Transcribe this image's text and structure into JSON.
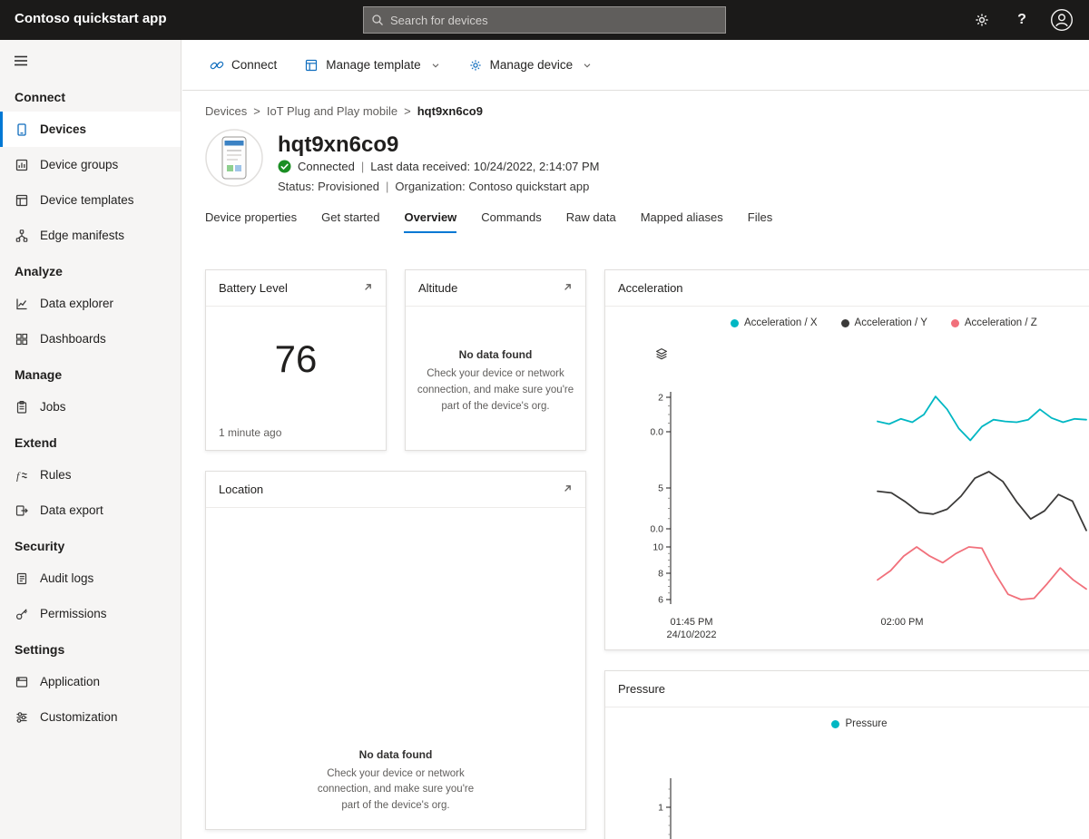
{
  "topbar": {
    "app_title": "Contoso quickstart app",
    "search_placeholder": "Search for devices"
  },
  "sidebar": {
    "sections": [
      {
        "header": "Connect",
        "items": [
          {
            "label": "Devices",
            "selected": true
          },
          {
            "label": "Device groups"
          },
          {
            "label": "Device templates"
          },
          {
            "label": "Edge manifests"
          }
        ]
      },
      {
        "header": "Analyze",
        "items": [
          {
            "label": "Data explorer"
          },
          {
            "label": "Dashboards"
          }
        ]
      },
      {
        "header": "Manage",
        "items": [
          {
            "label": "Jobs"
          }
        ]
      },
      {
        "header": "Extend",
        "items": [
          {
            "label": "Rules"
          },
          {
            "label": "Data export"
          }
        ]
      },
      {
        "header": "Security",
        "items": [
          {
            "label": "Audit logs"
          },
          {
            "label": "Permissions"
          }
        ]
      },
      {
        "header": "Settings",
        "items": [
          {
            "label": "Application"
          },
          {
            "label": "Customization"
          }
        ]
      }
    ]
  },
  "toolbar": {
    "connect_label": "Connect",
    "manage_template_label": "Manage template",
    "manage_device_label": "Manage device"
  },
  "breadcrumb": {
    "items": [
      "Devices",
      "IoT Plug and Play mobile",
      "hqt9xn6co9"
    ],
    "separator": ">"
  },
  "device": {
    "name": "hqt9xn6co9",
    "connection_status": "Connected",
    "last_data": "Last data received: 10/24/2022, 2:14:07 PM",
    "status": "Status: Provisioned",
    "organization": "Organization: Contoso quickstart app",
    "separator": "|"
  },
  "tabs": [
    {
      "label": "Device properties"
    },
    {
      "label": "Get started"
    },
    {
      "label": "Overview",
      "active": true
    },
    {
      "label": "Commands"
    },
    {
      "label": "Raw data"
    },
    {
      "label": "Mapped aliases"
    },
    {
      "label": "Files"
    }
  ],
  "tiles": {
    "battery": {
      "title": "Battery Level",
      "value": "76",
      "caption": "1 minute ago"
    },
    "altitude": {
      "title": "Altitude"
    },
    "acceleration": {
      "title": "Acceleration"
    },
    "location": {
      "title": "Location"
    },
    "pressure": {
      "title": "Pressure"
    }
  },
  "no_data": {
    "title": "No data found",
    "message": "Check your device or network connection, and make sure you're part of the device's org."
  },
  "chart_data": [
    {
      "tile": "Acceleration",
      "type": "line",
      "legend_position": "top",
      "x_ticks": [
        {
          "line1": "01:45 PM",
          "line2": "24/10/2022"
        },
        {
          "line1": "02:00 PM"
        }
      ],
      "series": [
        {
          "name": "Acceleration / X",
          "color": "#00B7C3",
          "axis_ticks": [
            "2",
            "0.0"
          ],
          "values": [
            0.6,
            0.45,
            0.75,
            0.55,
            1.0,
            2.05,
            1.3,
            0.2,
            -0.5,
            0.3,
            0.7,
            0.6,
            0.55,
            0.7,
            1.3,
            0.8,
            0.55,
            0.75,
            0.7
          ]
        },
        {
          "name": "Acceleration / Y",
          "color": "#3B3A39",
          "axis_ticks": [
            "5",
            "0.0"
          ],
          "values": [
            4.6,
            4.4,
            3.3,
            2.0,
            1.8,
            2.4,
            4.0,
            6.2,
            7.0,
            5.8,
            3.3,
            1.2,
            2.2,
            4.2,
            3.4,
            -0.2
          ]
        },
        {
          "name": "Acceleration / Z",
          "color": "#F1707B",
          "axis_ticks": [
            "10",
            "8",
            "6"
          ],
          "values": [
            7.5,
            8.2,
            9.3,
            10.0,
            9.3,
            8.8,
            9.5,
            10.0,
            9.9,
            8.0,
            6.4,
            6.0,
            6.1,
            7.2,
            8.4,
            7.5,
            6.8
          ]
        }
      ]
    },
    {
      "tile": "Pressure",
      "type": "line",
      "visible_y_ticks": [
        "1"
      ],
      "series": [
        {
          "name": "Pressure",
          "color": "#00B7C3",
          "values": []
        }
      ]
    }
  ]
}
